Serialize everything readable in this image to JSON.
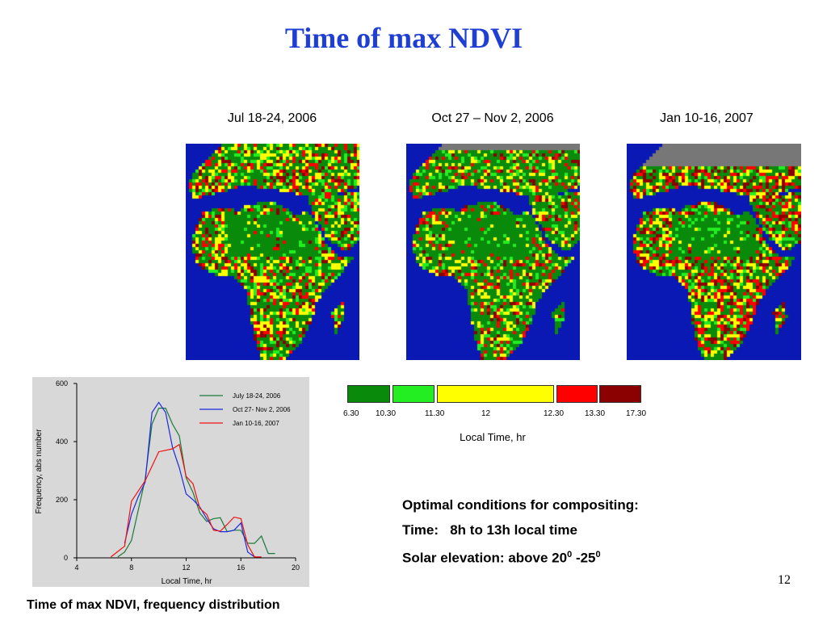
{
  "slide": {
    "title": "Time of max NDVI",
    "page_number": "12",
    "caption": "Time of max NDVI, frequency distribution"
  },
  "maps": [
    {
      "label": "Jul 18-24, 2006",
      "seed": 11,
      "weights": [
        0.45,
        0.12,
        0.2,
        0.13,
        0.1
      ]
    },
    {
      "label": "Oct 27 – Nov 2, 2006",
      "seed": 23,
      "weights": [
        0.55,
        0.12,
        0.15,
        0.1,
        0.08
      ]
    },
    {
      "label": "Jan 10-16, 2007",
      "seed": 37,
      "weights": [
        0.35,
        0.1,
        0.2,
        0.17,
        0.18
      ]
    }
  ],
  "color_legend": {
    "boxes": [
      {
        "color": "#0a8a0a"
      },
      {
        "color": "#22ee22"
      },
      {
        "color": "#ffff00"
      },
      {
        "color": "#ff0000"
      },
      {
        "color": "#8b0000"
      }
    ],
    "ticks": [
      "6.30",
      "10.30",
      "11.30",
      "12",
      "12.30",
      "13.30",
      "17.30"
    ],
    "caption": "Local Time, hr"
  },
  "notes": {
    "heading": "Optimal conditions for compositing:",
    "time_label": "Time:",
    "time_value": "8h to 13h local time",
    "solar_label": "Solar elevation: above 20",
    "solar_sup1": "0",
    "solar_mid": " -25",
    "solar_sup2": "0"
  },
  "colors": {
    "ocean": "#0a18b4",
    "no_data": "#777777",
    "title": "#1f3fd4"
  },
  "chart_data": {
    "type": "line",
    "xlabel": "Local Time, hr",
    "ylabel": "Frequency, abs number",
    "xlim": [
      4,
      20
    ],
    "ylim": [
      0,
      600
    ],
    "xticks": [
      "4",
      "8",
      "12",
      "16",
      "20"
    ],
    "yticks": [
      "0",
      "200",
      "400",
      "600"
    ],
    "legend_position": "top-right",
    "series": [
      {
        "name": "July 18-24, 2006",
        "color": "#1a7a3a",
        "x": [
          7,
          7.5,
          8,
          9,
          9.5,
          10,
          10.5,
          11,
          11.5,
          12,
          12.5,
          13,
          13.5,
          14,
          14.5,
          15,
          15.5,
          16,
          16.5,
          17,
          17.5,
          18,
          18.5
        ],
        "y": [
          3,
          20,
          60,
          270,
          460,
          515,
          515,
          460,
          420,
          275,
          225,
          155,
          125,
          135,
          138,
          90,
          95,
          95,
          50,
          50,
          75,
          15,
          15
        ]
      },
      {
        "name": "Oct 27- Nov 2, 2006",
        "color": "#1a2ae0",
        "x": [
          7.5,
          8,
          8.5,
          9,
          9.5,
          10,
          10.5,
          11,
          11.5,
          12,
          12.5,
          13,
          13.5,
          14,
          14.5,
          15,
          15.5,
          16,
          16.5,
          17
        ],
        "y": [
          50,
          150,
          210,
          260,
          500,
          535,
          500,
          380,
          310,
          220,
          200,
          175,
          135,
          100,
          90,
          90,
          95,
          120,
          20,
          3
        ]
      },
      {
        "name": "Jan 10-16, 2007",
        "color": "#ee1111",
        "x": [
          6.5,
          7.5,
          8,
          9,
          10,
          11,
          11.5,
          12,
          12.5,
          13,
          13.5,
          14,
          14.5,
          15,
          15.5,
          16,
          16.5,
          17,
          17.5
        ],
        "y": [
          3,
          40,
          195,
          265,
          365,
          375,
          390,
          280,
          255,
          170,
          150,
          95,
          92,
          115,
          140,
          135,
          45,
          3,
          3
        ]
      }
    ]
  }
}
